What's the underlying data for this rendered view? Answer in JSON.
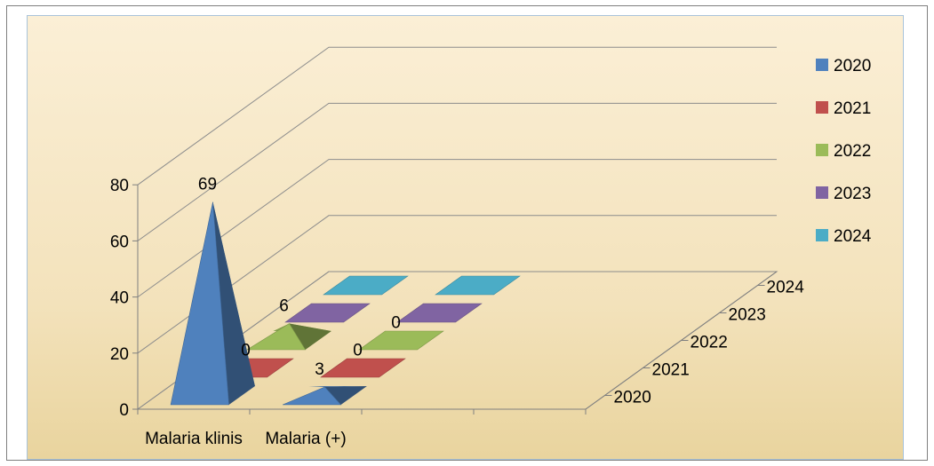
{
  "chart_data": {
    "type": "bar",
    "variant": "3d-cone",
    "categories": [
      "Malaria klinis",
      "Malaria (+)"
    ],
    "depth_categories": [
      "2020",
      "2021",
      "2022",
      "2023",
      "2024"
    ],
    "series": [
      {
        "name": "2020",
        "color": "#4f81bd",
        "values": [
          69,
          3
        ]
      },
      {
        "name": "2021",
        "color": "#c0504d",
        "values": [
          0,
          0
        ]
      },
      {
        "name": "2022",
        "color": "#9bbb59",
        "values": [
          6,
          0
        ]
      },
      {
        "name": "2023",
        "color": "#8064a2",
        "values": [
          0,
          0
        ]
      },
      {
        "name": "2024",
        "color": "#4bacc6",
        "values": [
          0,
          0
        ]
      }
    ],
    "data_labels": [
      {
        "series": "2020",
        "category": "Malaria klinis",
        "text": "69"
      },
      {
        "series": "2020",
        "category": "Malaria (+)",
        "text": "3"
      },
      {
        "series": "2021",
        "category": "Malaria klinis",
        "text": "0"
      },
      {
        "series": "2021",
        "category": "Malaria (+)",
        "text": "0"
      },
      {
        "series": "2022",
        "category": "Malaria klinis",
        "text": "6"
      },
      {
        "series": "2022",
        "category": "Malaria (+)",
        "text": "0"
      }
    ],
    "y_ticks": [
      "0",
      "20",
      "40",
      "60",
      "80"
    ],
    "ylim": [
      0,
      80
    ],
    "grid": true,
    "legend_position": "right",
    "title": "",
    "xlabel": "",
    "ylabel": ""
  }
}
